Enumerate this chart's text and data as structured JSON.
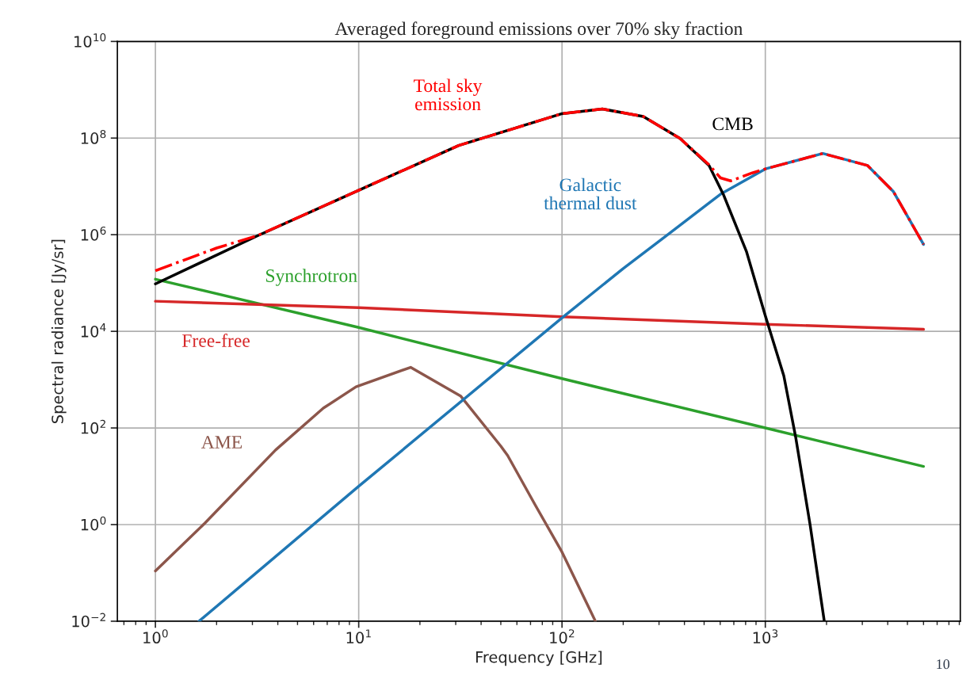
{
  "chart_data": {
    "type": "line",
    "title": "Averaged foreground emissions over 70% sky fraction",
    "xlabel": "Frequency [GHz]",
    "ylabel": "Spectral radiance [Jy/sr]",
    "log": "xy",
    "grid": true,
    "legend": false,
    "marker": "none",
    "xlim": [
      0.65,
      9100
    ],
    "xticks": [
      {
        "value": 1,
        "label": "10$^{0}$"
      },
      {
        "value": 10,
        "label": "10$^{1}$"
      },
      {
        "value": 100,
        "label": "10$^{2}$"
      },
      {
        "value": 1000,
        "label": "10$^{3}$"
      }
    ],
    "ylim": [
      0.01,
      10000000000.0
    ],
    "yticks": [
      {
        "value": 0.01,
        "label": "10$^{−2}$"
      },
      {
        "value": 1,
        "label": "10$^{0}$"
      },
      {
        "value": 100,
        "label": "10$^{2}$"
      },
      {
        "value": 10000,
        "label": "10$^{4}$"
      },
      {
        "value": 1000000,
        "label": "10$^{6}$"
      },
      {
        "value": 100000000,
        "label": "10$^{8}$"
      },
      {
        "value": 10000000000,
        "label": "10$^{10}$"
      }
    ],
    "series": [
      {
        "name": "Synchrotron",
        "color": "#2ca02c",
        "line_style": "solid",
        "x": [
          1,
          10,
          100,
          1000,
          6000
        ],
        "values": [
          120000,
          12000,
          1050,
          100,
          16
        ]
      },
      {
        "name": "Free-free",
        "color": "#d62728",
        "line_style": "solid",
        "x": [
          1,
          10,
          100,
          1000,
          6000
        ],
        "values": [
          42000,
          31000,
          20000,
          14000,
          11000
        ]
      },
      {
        "name": "AME",
        "color": "#8c564b",
        "line_style": "solid",
        "x": [
          1,
          1.75,
          3.9,
          6.7,
          9.7,
          18,
          31.7,
          50,
          54,
          74,
          100,
          146
        ],
        "values": [
          0.11,
          1.07,
          35,
          257,
          710,
          1800,
          460,
          42,
          27,
          2.5,
          0.27,
          0.01
        ]
      },
      {
        "name": "Galactic\nthermal dust",
        "color": "#1f77b4",
        "line_style": "solid",
        "x": [
          1.64,
          10,
          100,
          200,
          336,
          602,
          1000,
          1918,
          3185,
          4266,
          6000
        ],
        "values": [
          0.01,
          6.2,
          19000,
          200000,
          1050000,
          6900000,
          23000000,
          48000000,
          27000000,
          7800000,
          630000
        ]
      },
      {
        "name": "CMB",
        "color": "#000000",
        "line_style": "solid",
        "x": [
          1,
          3.18,
          10,
          31,
          100,
          158,
          251,
          381,
          529,
          622,
          809,
          1000,
          1233,
          1409,
          1660,
          1950
        ],
        "values": [
          96000,
          950000,
          8300000,
          70000000,
          320000000,
          400000000,
          280000000,
          98000000,
          27000000,
          6800000,
          440000,
          21000,
          1200,
          66,
          1,
          0.01
        ]
      },
      {
        "name": "Total sky\nemission",
        "color": "#ff0000",
        "line_style": "dashdot",
        "x": [
          1,
          2,
          3.18,
          10,
          31,
          100,
          158,
          251,
          381,
          529,
          602,
          676,
          863,
          1000,
          1918,
          3185,
          4266,
          6000
        ],
        "values": [
          180000,
          530000,
          960000,
          8300000,
          70000000,
          320000000,
          400000000,
          280000000,
          98000000,
          28000000,
          15000000,
          13000000,
          19000000,
          23000000,
          48000000,
          27000000,
          7800000,
          630000
        ]
      }
    ],
    "annotations": [
      "10"
    ]
  }
}
